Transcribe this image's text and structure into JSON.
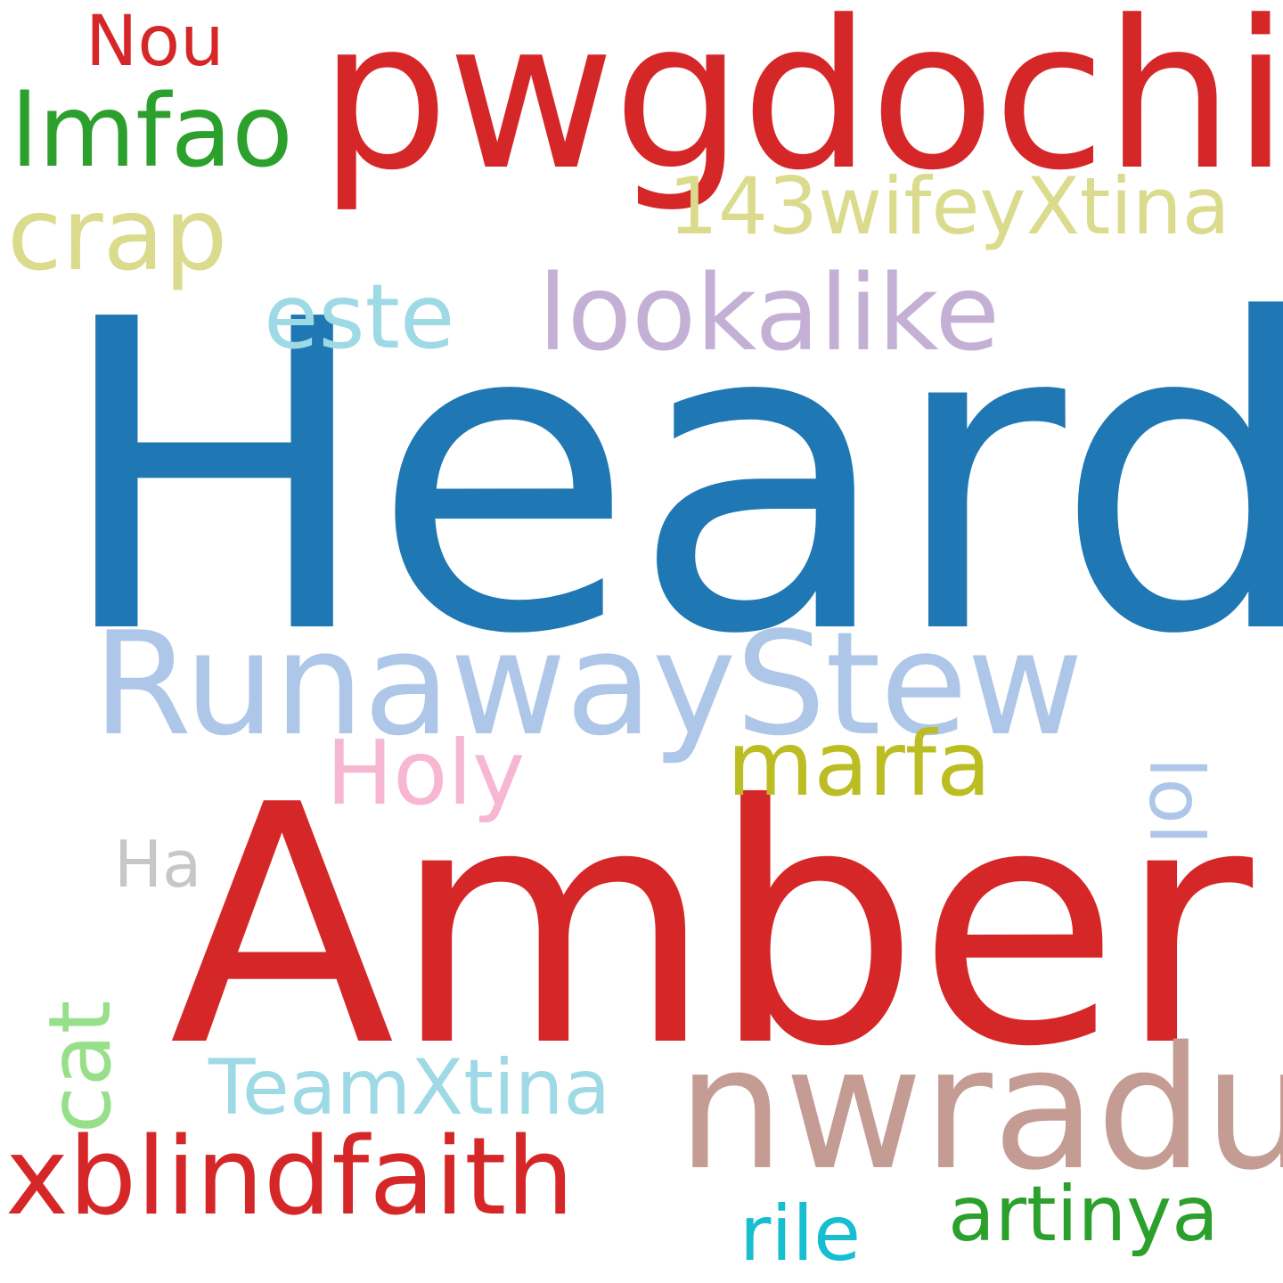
{
  "words": [
    {
      "text": "Heard",
      "color": "#1f77b4"
    },
    {
      "text": "Amber",
      "color": "#d62728"
    },
    {
      "text": "pwgdochi",
      "color": "#d62728"
    },
    {
      "text": "RunawayStew",
      "color": "#aec7e8"
    },
    {
      "text": "nwradu",
      "color": "#c49c94"
    },
    {
      "text": "xblindfaith",
      "color": "#d62728"
    },
    {
      "text": "lookalike",
      "color": "#c5b0d5"
    },
    {
      "text": "lmfao",
      "color": "#2ca02c"
    },
    {
      "text": "crap",
      "color": "#dbdb8d"
    },
    {
      "text": "este",
      "color": "#9edae5"
    },
    {
      "text": "143wifeyXtina",
      "color": "#dbdb8d"
    },
    {
      "text": "marfa",
      "color": "#bcbd22"
    },
    {
      "text": "Holy",
      "color": "#f7b6d2"
    },
    {
      "text": "TeamXtina",
      "color": "#9edae5"
    },
    {
      "text": "artinya",
      "color": "#2ca02c"
    },
    {
      "text": "rile",
      "color": "#17becf"
    },
    {
      "text": "Nou",
      "color": "#d62728"
    },
    {
      "text": "Ha",
      "color": "#c7c7c7"
    },
    {
      "text": "cat",
      "color": "#98df8a"
    },
    {
      "text": "lol",
      "color": "#aec7e8"
    }
  ]
}
